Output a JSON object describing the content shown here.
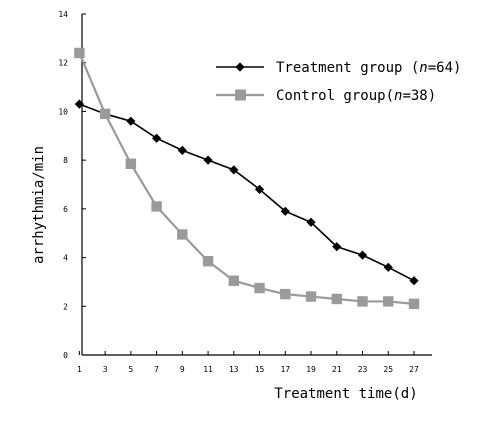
{
  "chart_data": {
    "type": "line",
    "title": "",
    "xlabel": "Treatment time(d)",
    "ylabel": "arrhythmia/min",
    "x": [
      1,
      3,
      5,
      7,
      9,
      11,
      13,
      15,
      17,
      19,
      21,
      23,
      25,
      27
    ],
    "xlim": [
      0,
      28
    ],
    "ylim": [
      0,
      14
    ],
    "yticks": [
      0,
      2,
      4,
      6,
      8,
      10,
      12,
      14
    ],
    "grid": false,
    "legend_position": "top-right",
    "series": [
      {
        "name": "Treatment group (n=64)",
        "name_parts": [
          "Treatment group (",
          "n",
          "=64)"
        ],
        "marker": "diamond",
        "color": "#000000",
        "values": [
          10.3,
          9.9,
          9.6,
          8.9,
          8.4,
          8.0,
          7.6,
          6.8,
          5.9,
          5.45,
          4.45,
          4.1,
          3.6,
          3.05
        ]
      },
      {
        "name": "Control group(n=38)",
        "name_parts": [
          "Control group(",
          "n",
          "=38)"
        ],
        "marker": "square",
        "color": "#9a9a9a",
        "values": [
          12.4,
          9.9,
          7.85,
          6.1,
          4.95,
          3.85,
          3.05,
          2.75,
          2.5,
          2.4,
          2.3,
          2.2,
          2.2,
          2.1
        ]
      }
    ]
  }
}
